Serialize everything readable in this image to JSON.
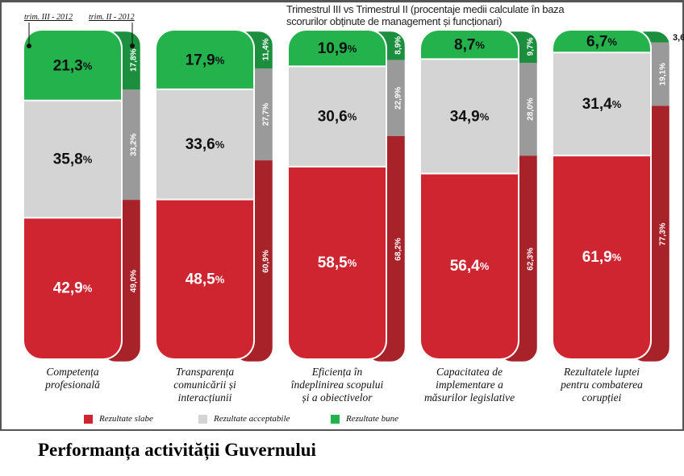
{
  "chart_data": {
    "type": "bar",
    "stacked": true,
    "title": "Performanța activității Guvernului",
    "subtitle_lines": [
      "Trimestrul III vs Trimestrul II (procentaje medii calculate în baza",
      "scorurilor obținute de management și funcționari)"
    ],
    "period_labels": [
      "trim. III - 2012",
      "trim. II - 2012"
    ],
    "categories": [
      [
        "Competența",
        "profesională"
      ],
      [
        "Transparența",
        "comunicării și",
        "interacțiunii"
      ],
      [
        "Eficiența în",
        "îndeplinirea scopului",
        "și a obiectivelor"
      ],
      [
        "Capacitatea de",
        "implementare a",
        "măsurilor legislative"
      ],
      [
        "Rezultatele luptei",
        "pentru combaterea",
        "corupției"
      ]
    ],
    "legend": [
      "Rezultate slabe",
      "Rezultate acceptabile",
      "Rezultate bune"
    ],
    "legend_placement": "bottom",
    "colors": {
      "weak": "#cf2530",
      "weak_q2": "#a8222a",
      "acceptable": "#d4d4d4",
      "acceptable_q2": "#9a9a9a",
      "good": "#23b24c",
      "good_q2": "#1c8f3e"
    },
    "series": [
      {
        "name": "trim. III - 2012",
        "weak": [
          42.9,
          48.5,
          58.5,
          56.4,
          61.9
        ],
        "acceptable": [
          35.8,
          33.6,
          30.6,
          34.9,
          31.4
        ],
        "good": [
          21.3,
          17.9,
          10.9,
          8.7,
          6.7
        ]
      },
      {
        "name": "trim. II - 2012",
        "weak": [
          49.0,
          60.9,
          68.2,
          62.3,
          77.3
        ],
        "acceptable": [
          33.2,
          27.7,
          22.9,
          28.0,
          19.1
        ],
        "good": [
          17.8,
          11.4,
          8.9,
          9.7,
          3.6
        ]
      }
    ],
    "unit": "%"
  }
}
